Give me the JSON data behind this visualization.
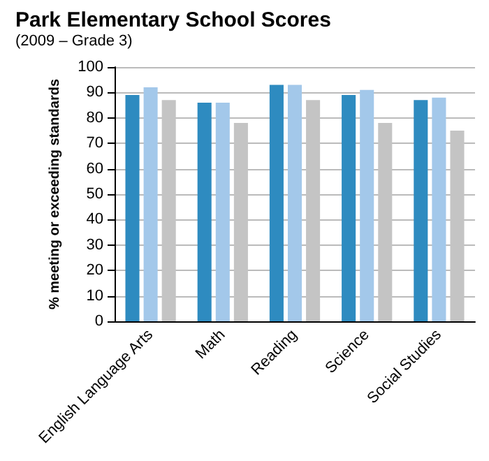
{
  "chart_data": {
    "type": "bar",
    "title": "Park Elementary School Scores",
    "subtitle": "(2009 – Grade 3)",
    "ylabel": "% meeting or exceeding standards",
    "categories": [
      "English Language Arts",
      "Math",
      "Reading",
      "Science",
      "Social Studies"
    ],
    "series": [
      {
        "color": "#2e8bc0",
        "values": [
          89,
          86,
          93,
          89,
          87
        ]
      },
      {
        "color": "#a3c8ea",
        "values": [
          92,
          86,
          93,
          91,
          88
        ]
      },
      {
        "color": "#c4c4c4",
        "values": [
          87,
          78,
          87,
          78,
          75
        ]
      }
    ],
    "ylim": [
      0,
      100
    ],
    "yticks": [
      0,
      10,
      20,
      30,
      40,
      50,
      60,
      70,
      80,
      90,
      100
    ],
    "grid": "y"
  }
}
